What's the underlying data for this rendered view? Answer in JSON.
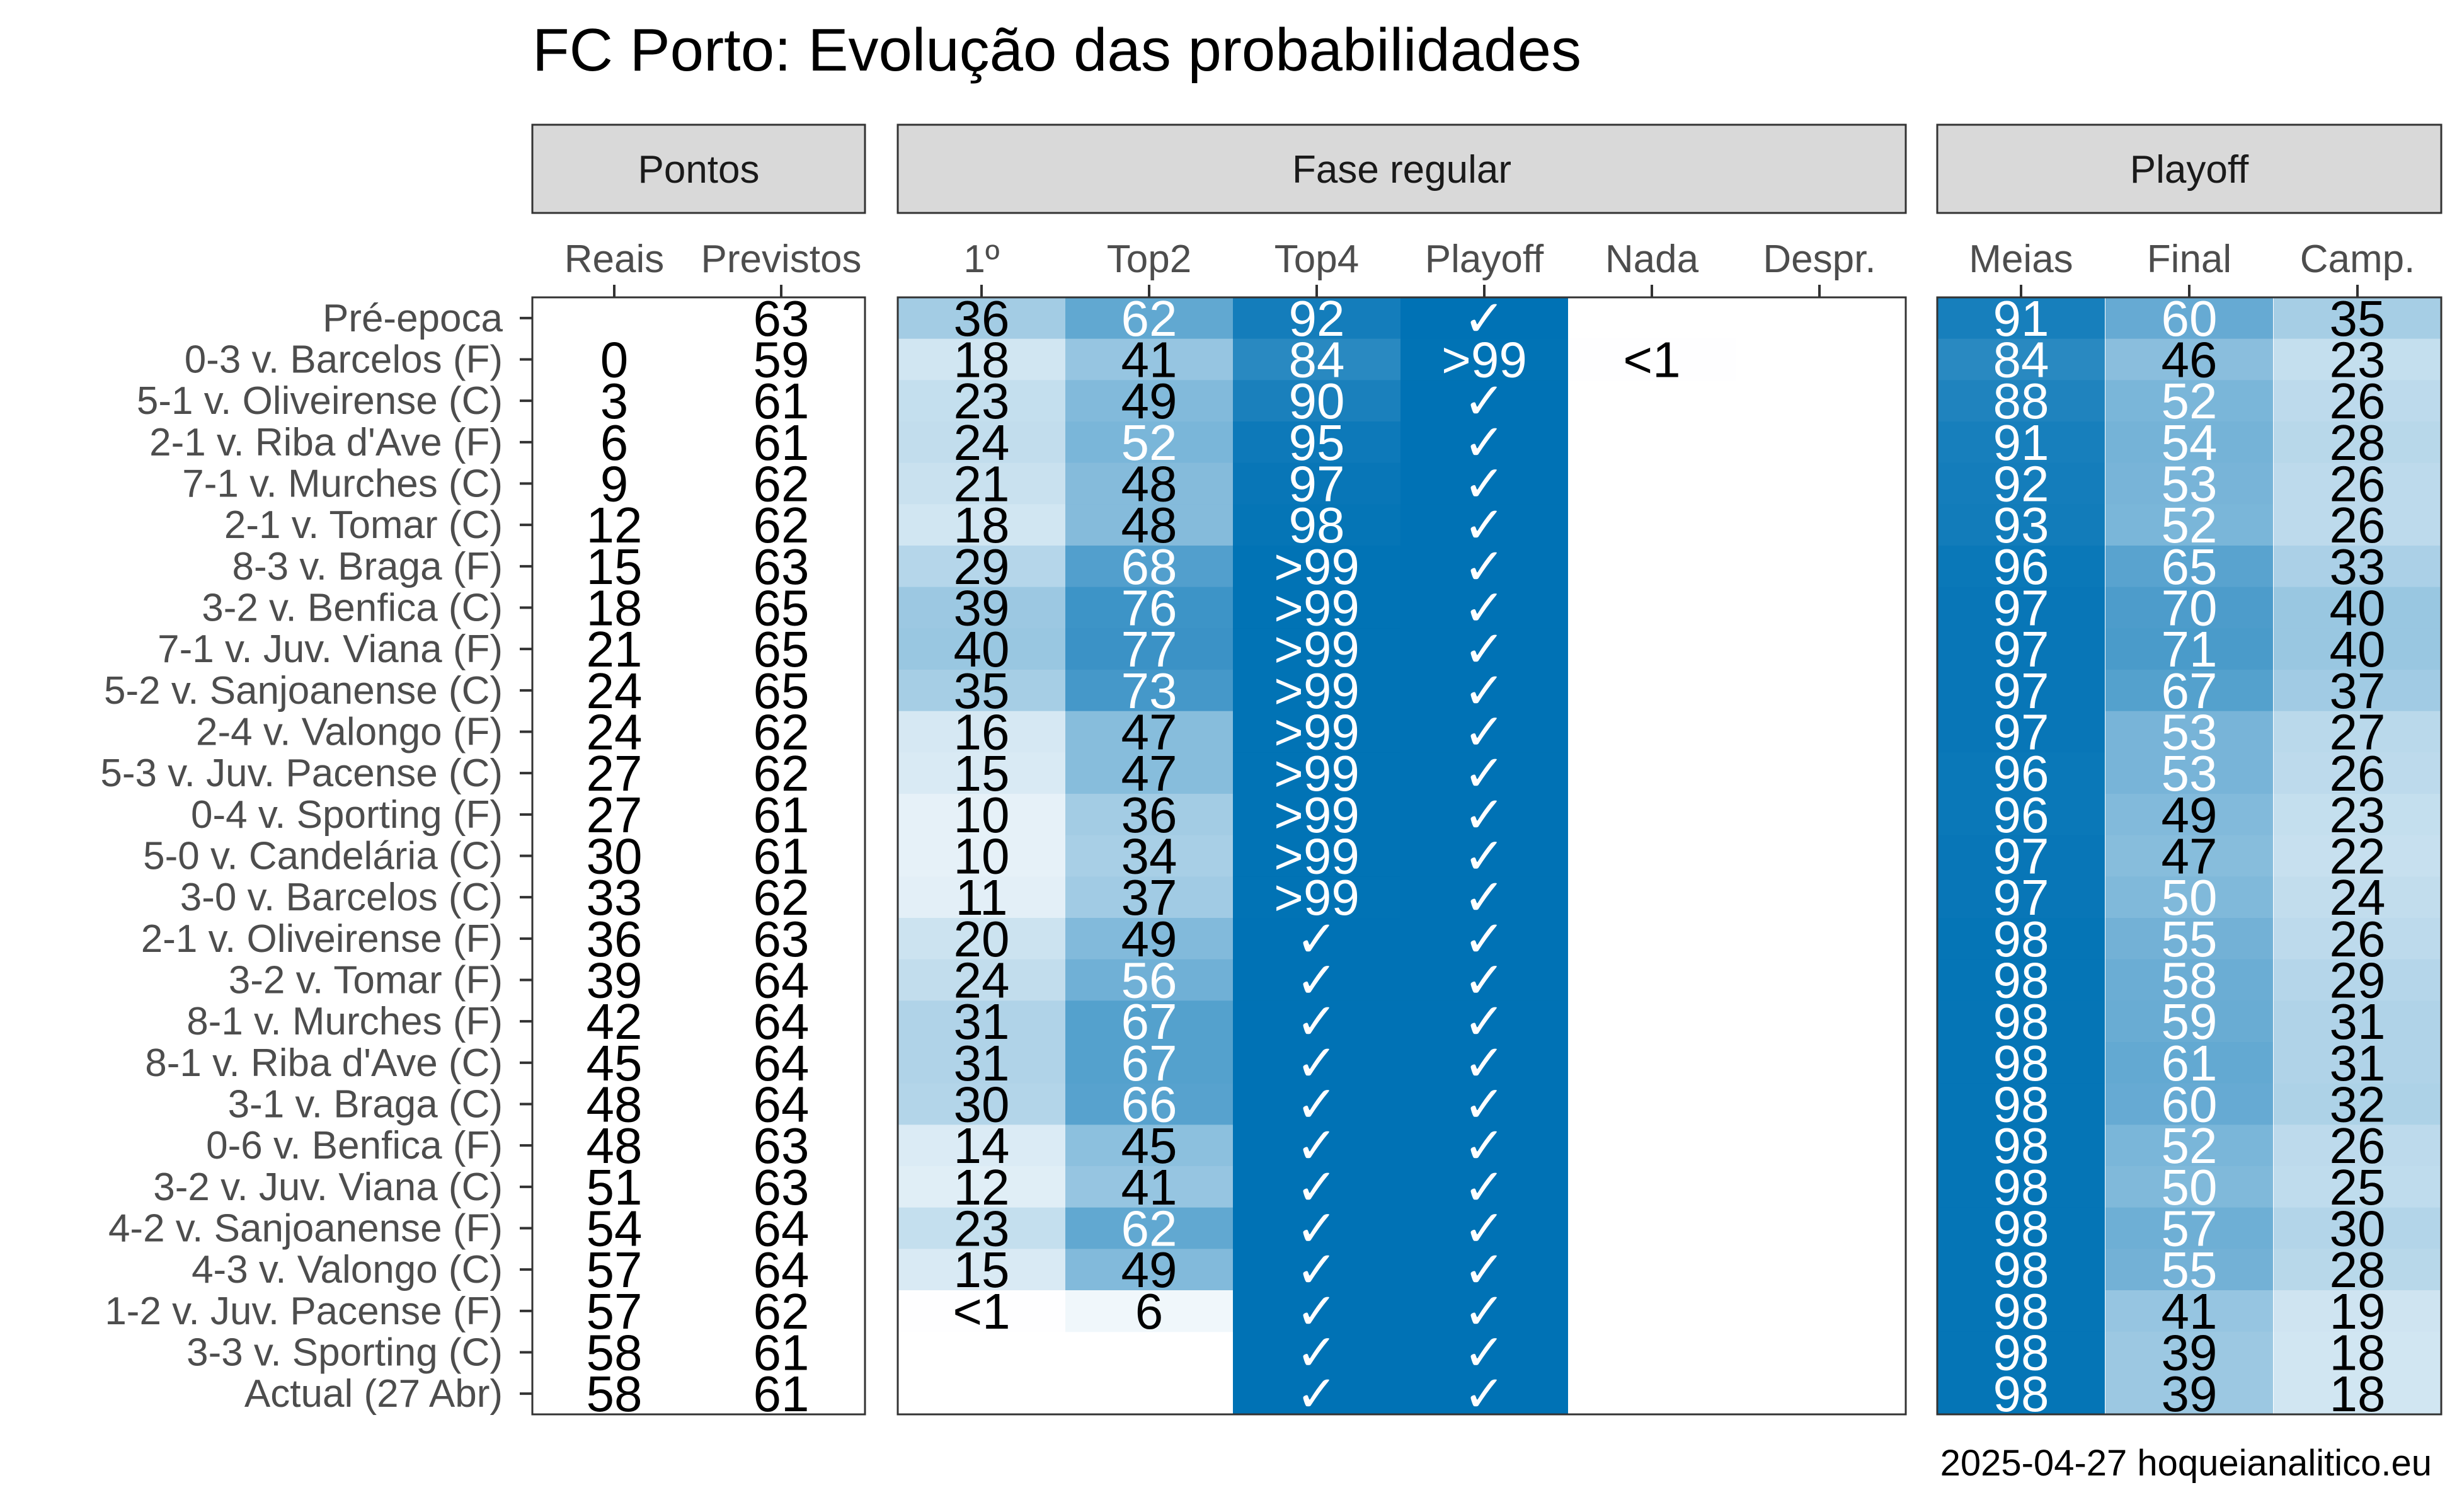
{
  "chart_data": {
    "type": "table",
    "title": "FC Porto: Evolução das probabilidades",
    "caption": "2025-04-27 hoqueianalitico.eu",
    "check_symbol": "✓",
    "panels": [
      {
        "name": "Pontos",
        "columns": [
          "Reais",
          "Previstos"
        ]
      },
      {
        "name": "Fase regular",
        "columns": [
          "1º",
          "Top2",
          "Top4",
          "Playoff",
          "Nada",
          "Despr."
        ]
      },
      {
        "name": "Playoff",
        "columns": [
          "Meias",
          "Final",
          "Camp."
        ]
      }
    ],
    "rows": [
      {
        "label": "Pré-epoca",
        "Reais": "",
        "Previstos": "63",
        "1º": "36",
        "Top2": "62",
        "Top4": "92",
        "Playoff": "✓",
        "Nada": "",
        "Despr.": "",
        "Meias": "91",
        "Final": "60",
        "Camp.": "35"
      },
      {
        "label": "0-3 v. Barcelos (F)",
        "Reais": "0",
        "Previstos": "59",
        "1º": "18",
        "Top2": "41",
        "Top4": "84",
        "Playoff": ">99",
        "Nada": "<1",
        "Despr.": "",
        "Meias": "84",
        "Final": "46",
        "Camp.": "23"
      },
      {
        "label": "5-1 v. Oliveirense (C)",
        "Reais": "3",
        "Previstos": "61",
        "1º": "23",
        "Top2": "49",
        "Top4": "90",
        "Playoff": "✓",
        "Nada": "",
        "Despr.": "",
        "Meias": "88",
        "Final": "52",
        "Camp.": "26"
      },
      {
        "label": "2-1 v. Riba d'Ave (F)",
        "Reais": "6",
        "Previstos": "61",
        "1º": "24",
        "Top2": "52",
        "Top4": "95",
        "Playoff": "✓",
        "Nada": "",
        "Despr.": "",
        "Meias": "91",
        "Final": "54",
        "Camp.": "28"
      },
      {
        "label": "7-1 v. Murches (C)",
        "Reais": "9",
        "Previstos": "62",
        "1º": "21",
        "Top2": "48",
        "Top4": "97",
        "Playoff": "✓",
        "Nada": "",
        "Despr.": "",
        "Meias": "92",
        "Final": "53",
        "Camp.": "26"
      },
      {
        "label": "2-1 v. Tomar (C)",
        "Reais": "12",
        "Previstos": "62",
        "1º": "18",
        "Top2": "48",
        "Top4": "98",
        "Playoff": "✓",
        "Nada": "",
        "Despr.": "",
        "Meias": "93",
        "Final": "52",
        "Camp.": "26"
      },
      {
        "label": "8-3 v. Braga (F)",
        "Reais": "15",
        "Previstos": "63",
        "1º": "29",
        "Top2": "68",
        "Top4": ">99",
        "Playoff": "✓",
        "Nada": "",
        "Despr.": "",
        "Meias": "96",
        "Final": "65",
        "Camp.": "33"
      },
      {
        "label": "3-2 v. Benfica (C)",
        "Reais": "18",
        "Previstos": "65",
        "1º": "39",
        "Top2": "76",
        "Top4": ">99",
        "Playoff": "✓",
        "Nada": "",
        "Despr.": "",
        "Meias": "97",
        "Final": "70",
        "Camp.": "40"
      },
      {
        "label": "7-1 v. Juv. Viana (F)",
        "Reais": "21",
        "Previstos": "65",
        "1º": "40",
        "Top2": "77",
        "Top4": ">99",
        "Playoff": "✓",
        "Nada": "",
        "Despr.": "",
        "Meias": "97",
        "Final": "71",
        "Camp.": "40"
      },
      {
        "label": "5-2 v. Sanjoanense (C)",
        "Reais": "24",
        "Previstos": "65",
        "1º": "35",
        "Top2": "73",
        "Top4": ">99",
        "Playoff": "✓",
        "Nada": "",
        "Despr.": "",
        "Meias": "97",
        "Final": "67",
        "Camp.": "37"
      },
      {
        "label": "2-4 v. Valongo (F)",
        "Reais": "24",
        "Previstos": "62",
        "1º": "16",
        "Top2": "47",
        "Top4": ">99",
        "Playoff": "✓",
        "Nada": "",
        "Despr.": "",
        "Meias": "97",
        "Final": "53",
        "Camp.": "27"
      },
      {
        "label": "5-3 v. Juv. Pacense (C)",
        "Reais": "27",
        "Previstos": "62",
        "1º": "15",
        "Top2": "47",
        "Top4": ">99",
        "Playoff": "✓",
        "Nada": "",
        "Despr.": "",
        "Meias": "96",
        "Final": "53",
        "Camp.": "26"
      },
      {
        "label": "0-4 v. Sporting (F)",
        "Reais": "27",
        "Previstos": "61",
        "1º": "10",
        "Top2": "36",
        "Top4": ">99",
        "Playoff": "✓",
        "Nada": "",
        "Despr.": "",
        "Meias": "96",
        "Final": "49",
        "Camp.": "23"
      },
      {
        "label": "5-0 v. Candelária (C)",
        "Reais": "30",
        "Previstos": "61",
        "1º": "10",
        "Top2": "34",
        "Top4": ">99",
        "Playoff": "✓",
        "Nada": "",
        "Despr.": "",
        "Meias": "97",
        "Final": "47",
        "Camp.": "22"
      },
      {
        "label": "3-0 v. Barcelos (C)",
        "Reais": "33",
        "Previstos": "62",
        "1º": "11",
        "Top2": "37",
        "Top4": ">99",
        "Playoff": "✓",
        "Nada": "",
        "Despr.": "",
        "Meias": "97",
        "Final": "50",
        "Camp.": "24"
      },
      {
        "label": "2-1 v. Oliveirense (F)",
        "Reais": "36",
        "Previstos": "63",
        "1º": "20",
        "Top2": "49",
        "Top4": "✓",
        "Playoff": "✓",
        "Nada": "",
        "Despr.": "",
        "Meias": "98",
        "Final": "55",
        "Camp.": "26"
      },
      {
        "label": "3-2 v. Tomar (F)",
        "Reais": "39",
        "Previstos": "64",
        "1º": "24",
        "Top2": "56",
        "Top4": "✓",
        "Playoff": "✓",
        "Nada": "",
        "Despr.": "",
        "Meias": "98",
        "Final": "58",
        "Camp.": "29"
      },
      {
        "label": "8-1 v. Murches (F)",
        "Reais": "42",
        "Previstos": "64",
        "1º": "31",
        "Top2": "67",
        "Top4": "✓",
        "Playoff": "✓",
        "Nada": "",
        "Despr.": "",
        "Meias": "98",
        "Final": "59",
        "Camp.": "31"
      },
      {
        "label": "8-1 v. Riba d'Ave (C)",
        "Reais": "45",
        "Previstos": "64",
        "1º": "31",
        "Top2": "67",
        "Top4": "✓",
        "Playoff": "✓",
        "Nada": "",
        "Despr.": "",
        "Meias": "98",
        "Final": "61",
        "Camp.": "31"
      },
      {
        "label": "3-1 v. Braga (C)",
        "Reais": "48",
        "Previstos": "64",
        "1º": "30",
        "Top2": "66",
        "Top4": "✓",
        "Playoff": "✓",
        "Nada": "",
        "Despr.": "",
        "Meias": "98",
        "Final": "60",
        "Camp.": "32"
      },
      {
        "label": "0-6 v. Benfica (F)",
        "Reais": "48",
        "Previstos": "63",
        "1º": "14",
        "Top2": "45",
        "Top4": "✓",
        "Playoff": "✓",
        "Nada": "",
        "Despr.": "",
        "Meias": "98",
        "Final": "52",
        "Camp.": "26"
      },
      {
        "label": "3-2 v. Juv. Viana (C)",
        "Reais": "51",
        "Previstos": "63",
        "1º": "12",
        "Top2": "41",
        "Top4": "✓",
        "Playoff": "✓",
        "Nada": "",
        "Despr.": "",
        "Meias": "98",
        "Final": "50",
        "Camp.": "25"
      },
      {
        "label": "4-2 v. Sanjoanense (F)",
        "Reais": "54",
        "Previstos": "64",
        "1º": "23",
        "Top2": "62",
        "Top4": "✓",
        "Playoff": "✓",
        "Nada": "",
        "Despr.": "",
        "Meias": "98",
        "Final": "57",
        "Camp.": "30"
      },
      {
        "label": "4-3 v. Valongo (C)",
        "Reais": "57",
        "Previstos": "64",
        "1º": "15",
        "Top2": "49",
        "Top4": "✓",
        "Playoff": "✓",
        "Nada": "",
        "Despr.": "",
        "Meias": "98",
        "Final": "55",
        "Camp.": "28"
      },
      {
        "label": "1-2 v. Juv. Pacense (F)",
        "Reais": "57",
        "Previstos": "62",
        "1º": "<1",
        "Top2": "6",
        "Top4": "✓",
        "Playoff": "✓",
        "Nada": "",
        "Despr.": "",
        "Meias": "98",
        "Final": "41",
        "Camp.": "19"
      },
      {
        "label": "3-3 v. Sporting (C)",
        "Reais": "58",
        "Previstos": "61",
        "1º": "",
        "Top2": "",
        "Top4": "✓",
        "Playoff": "✓",
        "Nada": "",
        "Despr.": "",
        "Meias": "98",
        "Final": "39",
        "Camp.": "18"
      },
      {
        "label": "Actual (27 Abr)",
        "Reais": "58",
        "Previstos": "61",
        "1º": "",
        "Top2": "",
        "Top4": "✓",
        "Playoff": "✓",
        "Nada": "",
        "Despr.": "",
        "Meias": "98",
        "Final": "39",
        "Camp.": "18"
      }
    ],
    "colors": {
      "fill_max": "#0072b5",
      "fill_min": "#ffffff",
      "text_dark": "#000000",
      "text_light": "#ffffff",
      "strip_fill": "#d9d9d9",
      "axis_text": "#4d4d4d"
    }
  }
}
